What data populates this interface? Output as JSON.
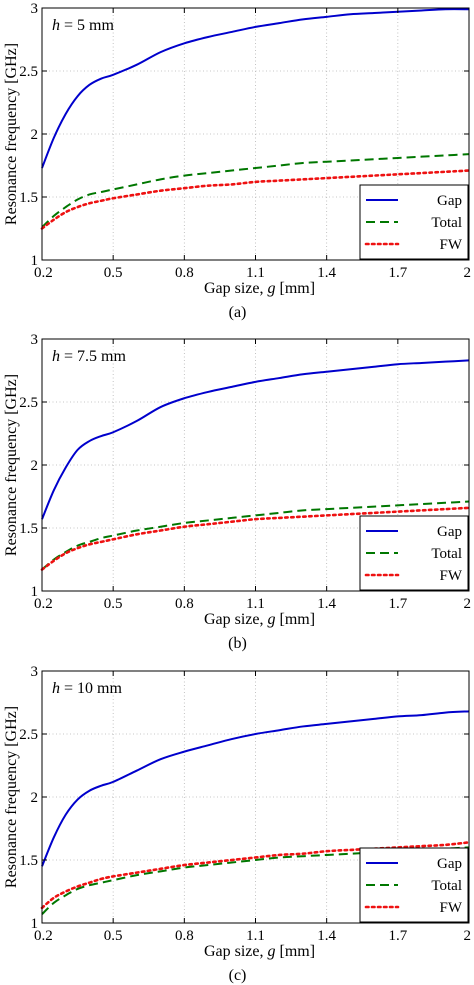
{
  "chart_data": [
    {
      "type": "line",
      "annotation_var": "h",
      "annotation_rest": " = 5 mm",
      "xlabel_prefix": "Gap size, ",
      "xlabel_var": "g",
      "xlabel_suffix": " [mm]",
      "ylabel": "Resonance frequency [GHz]",
      "caption": "(a)",
      "xlim": [
        0.2,
        2
      ],
      "ylim": [
        1,
        3
      ],
      "xticks": [
        "0.2",
        "0.5",
        "0.8",
        "1.1",
        "1.4",
        "1.7",
        "2"
      ],
      "yticks": [
        "1",
        "1.5",
        "2",
        "2.5",
        "3"
      ],
      "grid": true,
      "legend_position": "lower-right",
      "x": [
        0.2,
        0.25,
        0.3,
        0.35,
        0.4,
        0.45,
        0.5,
        0.6,
        0.7,
        0.8,
        0.9,
        1.0,
        1.1,
        1.2,
        1.3,
        1.4,
        1.5,
        1.6,
        1.7,
        1.8,
        1.9,
        2.0
      ],
      "series": [
        {
          "name": "Gap",
          "color": "#0000cc",
          "style": "solid",
          "values": [
            1.73,
            1.97,
            2.16,
            2.3,
            2.39,
            2.44,
            2.47,
            2.55,
            2.65,
            2.72,
            2.77,
            2.81,
            2.85,
            2.88,
            2.91,
            2.93,
            2.95,
            2.96,
            2.97,
            2.98,
            2.99,
            2.99
          ]
        },
        {
          "name": "Total",
          "color": "#007700",
          "style": "dashed",
          "values": [
            1.26,
            1.35,
            1.42,
            1.48,
            1.52,
            1.54,
            1.56,
            1.6,
            1.64,
            1.67,
            1.69,
            1.71,
            1.73,
            1.75,
            1.77,
            1.78,
            1.79,
            1.8,
            1.81,
            1.82,
            1.83,
            1.84
          ]
        },
        {
          "name": "FW",
          "color": "#ee1111",
          "style": "dotted",
          "values": [
            1.25,
            1.32,
            1.38,
            1.42,
            1.45,
            1.47,
            1.49,
            1.52,
            1.55,
            1.57,
            1.59,
            1.6,
            1.62,
            1.63,
            1.64,
            1.65,
            1.66,
            1.67,
            1.68,
            1.69,
            1.7,
            1.71
          ]
        }
      ]
    },
    {
      "type": "line",
      "annotation_var": "h",
      "annotation_rest": " = 7.5 mm",
      "xlabel_prefix": "Gap size, ",
      "xlabel_var": "g",
      "xlabel_suffix": " [mm]",
      "ylabel": "Resonance frequency [GHz]",
      "caption": "(b)",
      "xlim": [
        0.2,
        2
      ],
      "ylim": [
        1,
        3
      ],
      "xticks": [
        "0.2",
        "0.5",
        "0.8",
        "1.1",
        "1.4",
        "1.7",
        "2"
      ],
      "yticks": [
        "1",
        "1.5",
        "2",
        "2.5",
        "3"
      ],
      "grid": true,
      "legend_position": "lower-right",
      "x": [
        0.2,
        0.25,
        0.3,
        0.35,
        0.4,
        0.45,
        0.5,
        0.6,
        0.7,
        0.8,
        0.9,
        1.0,
        1.1,
        1.2,
        1.3,
        1.4,
        1.5,
        1.6,
        1.7,
        1.8,
        1.9,
        2.0
      ],
      "series": [
        {
          "name": "Gap",
          "color": "#0000cc",
          "style": "solid",
          "values": [
            1.57,
            1.8,
            1.98,
            2.12,
            2.19,
            2.23,
            2.26,
            2.35,
            2.46,
            2.53,
            2.58,
            2.62,
            2.66,
            2.69,
            2.72,
            2.74,
            2.76,
            2.78,
            2.8,
            2.81,
            2.82,
            2.83
          ]
        },
        {
          "name": "Total",
          "color": "#007700",
          "style": "dashed",
          "values": [
            1.17,
            1.25,
            1.31,
            1.36,
            1.39,
            1.42,
            1.44,
            1.48,
            1.51,
            1.54,
            1.56,
            1.58,
            1.6,
            1.62,
            1.64,
            1.65,
            1.66,
            1.67,
            1.68,
            1.69,
            1.7,
            1.71
          ]
        },
        {
          "name": "FW",
          "color": "#ee1111",
          "style": "dotted",
          "values": [
            1.17,
            1.24,
            1.3,
            1.34,
            1.37,
            1.39,
            1.41,
            1.45,
            1.48,
            1.51,
            1.53,
            1.55,
            1.57,
            1.58,
            1.59,
            1.6,
            1.61,
            1.62,
            1.63,
            1.64,
            1.65,
            1.66
          ]
        }
      ]
    },
    {
      "type": "line",
      "annotation_var": "h",
      "annotation_rest": " = 10 mm",
      "xlabel_prefix": "Gap size, ",
      "xlabel_var": "g",
      "xlabel_suffix": " [mm]",
      "ylabel": "Resonance frequency [GHz]",
      "caption": "(c)",
      "xlim": [
        0.2,
        2
      ],
      "ylim": [
        1,
        3
      ],
      "xticks": [
        "0.2",
        "0.5",
        "0.8",
        "1.1",
        "1.4",
        "1.7",
        "2"
      ],
      "yticks": [
        "1",
        "1.5",
        "2",
        "2.5",
        "3"
      ],
      "grid": true,
      "legend_position": "lower-right",
      "x": [
        0.2,
        0.25,
        0.3,
        0.35,
        0.4,
        0.45,
        0.5,
        0.6,
        0.7,
        0.8,
        0.9,
        1.0,
        1.1,
        1.2,
        1.3,
        1.4,
        1.5,
        1.6,
        1.7,
        1.8,
        1.9,
        2.0
      ],
      "series": [
        {
          "name": "Gap",
          "color": "#0000cc",
          "style": "solid",
          "values": [
            1.45,
            1.68,
            1.86,
            1.98,
            2.05,
            2.09,
            2.12,
            2.21,
            2.3,
            2.36,
            2.41,
            2.46,
            2.5,
            2.53,
            2.56,
            2.58,
            2.6,
            2.62,
            2.64,
            2.65,
            2.67,
            2.68
          ]
        },
        {
          "name": "Total",
          "color": "#007700",
          "style": "dashed",
          "values": [
            1.07,
            1.16,
            1.22,
            1.27,
            1.3,
            1.32,
            1.34,
            1.38,
            1.41,
            1.44,
            1.46,
            1.48,
            1.5,
            1.52,
            1.53,
            1.54,
            1.55,
            1.56,
            1.57,
            1.58,
            1.59,
            1.6
          ]
        },
        {
          "name": "FW",
          "color": "#ee1111",
          "style": "dotted",
          "values": [
            1.12,
            1.2,
            1.25,
            1.29,
            1.32,
            1.35,
            1.37,
            1.4,
            1.43,
            1.46,
            1.48,
            1.5,
            1.52,
            1.54,
            1.55,
            1.57,
            1.58,
            1.59,
            1.6,
            1.61,
            1.62,
            1.64
          ]
        }
      ]
    }
  ]
}
